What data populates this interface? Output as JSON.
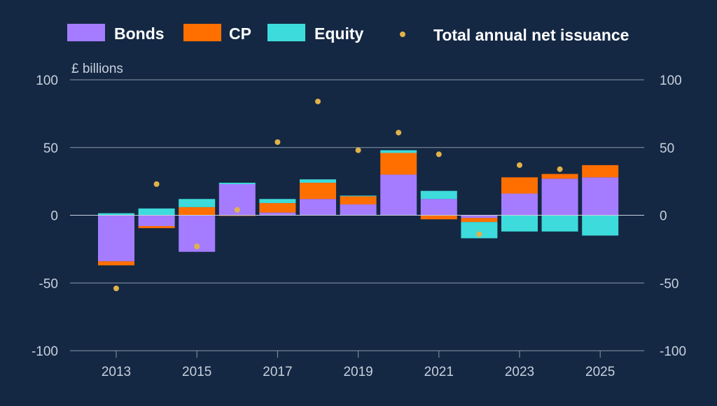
{
  "chart_data": {
    "type": "bar",
    "stacked": true,
    "unit_label": "£ billions",
    "categories": [
      "2013",
      "2014",
      "2015",
      "2016",
      "2017",
      "2018",
      "2019",
      "2020",
      "2021",
      "2022",
      "2023",
      "2024",
      "2025"
    ],
    "x_tick_labels": [
      "2013",
      "2015",
      "2017",
      "2019",
      "2021",
      "2023",
      "2025"
    ],
    "y_ticks": [
      100,
      50,
      0,
      -50,
      -100
    ],
    "ylim": [
      -100,
      100
    ],
    "grid": true,
    "legend_position": "top",
    "series": [
      {
        "name": "Bonds",
        "color": "#a57cff",
        "values": [
          -34,
          -8,
          -27,
          23,
          2,
          12,
          8,
          30,
          12,
          -2,
          16,
          27,
          28
        ]
      },
      {
        "name": "CP",
        "color": "#ff6f00",
        "values": [
          -3,
          -1.5,
          6,
          -0.5,
          7,
          12,
          6,
          16,
          -3,
          -3,
          12,
          3.5,
          9
        ]
      },
      {
        "name": "Equity",
        "color": "#3ddbdb",
        "values": [
          1.5,
          5,
          6,
          1,
          3,
          2.5,
          0.5,
          2,
          6,
          -12,
          -12,
          -12,
          -15
        ]
      }
    ],
    "total": {
      "name": "Total annual net issuance",
      "color": "#e0b24a",
      "values": [
        -54,
        23,
        -23,
        4,
        54,
        84,
        48,
        61,
        45,
        -14,
        37,
        34,
        null
      ]
    }
  }
}
